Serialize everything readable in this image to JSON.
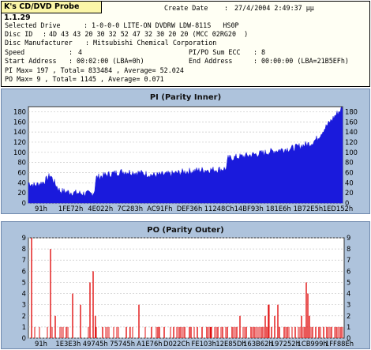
{
  "app": {
    "title": "K's CD/DVD Probe 1.1.29"
  },
  "info": {
    "create_date_label": "Create Date",
    "create_date_value": "27/4/2004 2:49:37 μμ",
    "selected_drive_label": "Selected Drive",
    "selected_drive_value": "1-0-0-0 LITE-ON DVDRW LDW-811S   HS0P",
    "disc_id_label": "Disc ID",
    "disc_id_value": "4D 43 43 20 30 32 52 47 32 30 20 20 (MCC 02RG20  )",
    "disc_manufacturer_label": "Disc Manufacturer",
    "disc_manufacturer_value": "Mitsubishi Chemical Corporation",
    "speed_label": "Speed",
    "speed_value": "4",
    "ecc_label": "PI/PO Sum ECC",
    "ecc_value": "8",
    "start_address_label": "Start Address",
    "start_address_value": "00:02:00 (LBA=0h)",
    "end_address_label": "End Address",
    "end_address_value": "00:00:00 (LBA=21B5EFh)",
    "pi_stats": "PI Max= 197 , Total= 833484 , Average= 52.024",
    "po_stats": "PO Max= 9 , Total= 1145 , Average= 0.071"
  },
  "colors": {
    "panel_bg": "#aec3dc",
    "plot_bg": "#ffffff",
    "pi_series": "#1a1adc",
    "po_series": "#e01010",
    "title_bg": "#fbf6a8"
  },
  "chart_data": [
    {
      "type": "area",
      "title": "PI (Parity Inner)",
      "x_tick_labels": [
        "91h",
        "1FE72h",
        "4E022h",
        "7C283h",
        "AC91Fh",
        "DEF36h",
        "11248Ch",
        "14BF93h",
        "181E6h",
        "1B72E5h",
        "1ED152h"
      ],
      "yticks": [
        0,
        20,
        40,
        60,
        80,
        100,
        120,
        140,
        160,
        180
      ],
      "ylim": [
        0,
        190
      ],
      "grid": true,
      "y_axis_both_sides": true,
      "profile_description_points": [
        [
          0,
          40
        ],
        [
          0.02,
          35
        ],
        [
          0.05,
          42
        ],
        [
          0.07,
          55
        ],
        [
          0.085,
          38
        ],
        [
          0.1,
          24
        ],
        [
          0.15,
          20
        ],
        [
          0.2,
          18
        ],
        [
          0.21,
          22
        ],
        [
          0.215,
          50
        ],
        [
          0.25,
          56
        ],
        [
          0.3,
          62
        ],
        [
          0.35,
          60
        ],
        [
          0.4,
          55
        ],
        [
          0.45,
          57
        ],
        [
          0.5,
          62
        ],
        [
          0.55,
          65
        ],
        [
          0.6,
          66
        ],
        [
          0.63,
          68
        ],
        [
          0.635,
          88
        ],
        [
          0.68,
          92
        ],
        [
          0.72,
          96
        ],
        [
          0.76,
          100
        ],
        [
          0.8,
          105
        ],
        [
          0.84,
          108
        ],
        [
          0.88,
          115
        ],
        [
          0.9,
          118
        ],
        [
          0.92,
          128
        ],
        [
          0.94,
          145
        ],
        [
          0.96,
          160
        ],
        [
          0.98,
          175
        ],
        [
          1.0,
          188
        ]
      ],
      "noise_amplitude": 14
    },
    {
      "type": "bar",
      "title": "PO (Parity Outer)",
      "x_tick_labels": [
        "91h",
        "1E3E3h",
        "49745h",
        "75745h",
        "A1E76h",
        "D022Ch",
        "FE103h",
        "12E85Dh",
        "163B62h",
        "197252h",
        "1CB999h",
        "1FF88Eh"
      ],
      "yticks": [
        0,
        1,
        2,
        3,
        4,
        5,
        6,
        7,
        8,
        9
      ],
      "ylim": [
        0,
        9
      ],
      "grid": true,
      "y_axis_both_sides": true,
      "spikes": [
        [
          0.01,
          9
        ],
        [
          0.07,
          8
        ],
        [
          0.085,
          2
        ],
        [
          0.12,
          1
        ],
        [
          0.14,
          4
        ],
        [
          0.165,
          3
        ],
        [
          0.195,
          5
        ],
        [
          0.205,
          6
        ],
        [
          0.212,
          2
        ],
        [
          0.235,
          1
        ],
        [
          0.31,
          1
        ],
        [
          0.322,
          1
        ],
        [
          0.35,
          3
        ],
        [
          0.39,
          1
        ],
        [
          0.41,
          1
        ],
        [
          0.415,
          1
        ],
        [
          0.43,
          1
        ],
        [
          0.46,
          1
        ],
        [
          0.48,
          1
        ],
        [
          0.495,
          1
        ],
        [
          0.51,
          1
        ],
        [
          0.515,
          1
        ],
        [
          0.535,
          1
        ],
        [
          0.55,
          1
        ],
        [
          0.565,
          1
        ],
        [
          0.578,
          1
        ],
        [
          0.6,
          1
        ],
        [
          0.615,
          1
        ],
        [
          0.63,
          1
        ],
        [
          0.645,
          1
        ],
        [
          0.66,
          1
        ],
        [
          0.67,
          2
        ],
        [
          0.69,
          1
        ],
        [
          0.705,
          1
        ],
        [
          0.715,
          1
        ],
        [
          0.74,
          1
        ],
        [
          0.75,
          2
        ],
        [
          0.755,
          1
        ],
        [
          0.76,
          3
        ],
        [
          0.762,
          3
        ],
        [
          0.77,
          1
        ],
        [
          0.78,
          2
        ],
        [
          0.79,
          3
        ],
        [
          0.795,
          1
        ],
        [
          0.81,
          1
        ],
        [
          0.82,
          1
        ],
        [
          0.845,
          1
        ],
        [
          0.865,
          2
        ],
        [
          0.875,
          1
        ],
        [
          0.88,
          5
        ],
        [
          0.885,
          4
        ],
        [
          0.89,
          2
        ],
        [
          0.9,
          1
        ],
        [
          0.91,
          1
        ],
        [
          0.92,
          1
        ],
        [
          0.935,
          1
        ],
        [
          0.945,
          1
        ],
        [
          0.96,
          1
        ],
        [
          0.975,
          1
        ],
        [
          0.99,
          1
        ]
      ],
      "baseline_density": 1
    }
  ]
}
